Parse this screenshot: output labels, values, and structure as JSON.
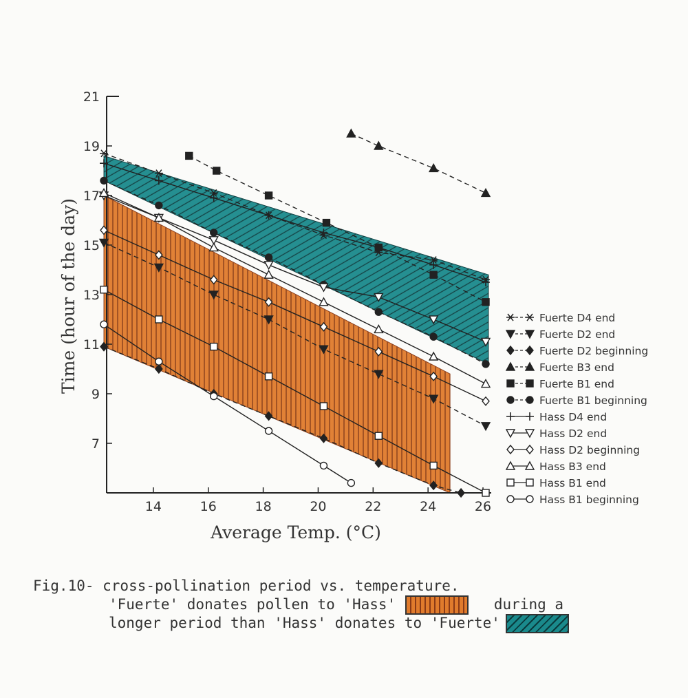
{
  "chart_data": {
    "type": "line",
    "xlabel": "Average Temp. (°C)",
    "ylabel": "Time (hour of the day)",
    "xlim": [
      12.3,
      26.3
    ],
    "ylim": [
      5,
      21
    ],
    "x_ticks": [
      "14",
      "16",
      "18",
      "20",
      "22",
      "24",
      "26"
    ],
    "y_ticks": [
      "7",
      "9",
      "11",
      "13",
      "15",
      "17",
      "19",
      "21"
    ],
    "legend_position": "right",
    "series": [
      {
        "name": "Fuerte D4 end",
        "marker": "star",
        "style": "dashed",
        "points": [
          [
            12.2,
            18.7
          ],
          [
            14.2,
            17.9
          ],
          [
            16.2,
            17.1
          ],
          [
            18.2,
            16.2
          ],
          [
            20.2,
            15.4
          ],
          [
            22.2,
            14.7
          ],
          [
            24.2,
            14.4
          ],
          [
            26.1,
            13.6
          ]
        ]
      },
      {
        "name": "Fuerte D2 end",
        "marker": "filled-triangle-down",
        "style": "dashed",
        "points": [
          [
            12.2,
            15.1
          ],
          [
            14.2,
            14.1
          ],
          [
            16.2,
            13.0
          ],
          [
            18.2,
            12.0
          ],
          [
            20.2,
            10.8
          ],
          [
            22.2,
            9.8
          ],
          [
            24.2,
            8.8
          ],
          [
            26.1,
            7.7
          ]
        ]
      },
      {
        "name": "Fuerte D2 beginning",
        "marker": "filled-diamond",
        "style": "dashed",
        "points": [
          [
            12.2,
            10.9
          ],
          [
            14.2,
            10.0
          ],
          [
            16.2,
            9.0
          ],
          [
            18.2,
            8.1
          ],
          [
            20.2,
            7.2
          ],
          [
            22.2,
            6.2
          ],
          [
            24.2,
            5.3
          ],
          [
            25.2,
            5.0
          ]
        ]
      },
      {
        "name": "Fuerte B3 end",
        "marker": "filled-triangle-up",
        "style": "dashed",
        "points": [
          [
            21.2,
            19.5
          ],
          [
            22.2,
            19.0
          ],
          [
            24.2,
            18.1
          ],
          [
            26.1,
            17.1
          ]
        ]
      },
      {
        "name": "Fuerte B1 end",
        "marker": "filled-square",
        "style": "dashed",
        "points": [
          [
            15.3,
            18.6
          ],
          [
            16.3,
            18.0
          ],
          [
            18.2,
            17.0
          ],
          [
            20.3,
            15.9
          ],
          [
            22.2,
            14.9
          ],
          [
            24.2,
            13.8
          ],
          [
            26.1,
            12.7
          ]
        ]
      },
      {
        "name": "Fuerte B1 beginning",
        "marker": "filled-circle",
        "style": "dashed",
        "points": [
          [
            12.2,
            17.6
          ],
          [
            14.2,
            16.6
          ],
          [
            16.2,
            15.5
          ],
          [
            18.2,
            14.5
          ],
          [
            20.2,
            13.4
          ],
          [
            22.2,
            12.3
          ],
          [
            24.2,
            11.3
          ],
          [
            26.1,
            10.2
          ]
        ]
      },
      {
        "name": "Hass D4 end",
        "marker": "plus",
        "style": "solid",
        "points": [
          [
            12.2,
            18.3
          ],
          [
            14.2,
            17.6
          ],
          [
            16.2,
            16.9
          ],
          [
            18.2,
            16.2
          ],
          [
            20.2,
            15.5
          ],
          [
            22.2,
            14.9
          ],
          [
            24.2,
            14.2
          ],
          [
            26.1,
            13.5
          ]
        ]
      },
      {
        "name": "Hass D2 end",
        "marker": "open-triangle-down",
        "style": "solid",
        "points": [
          [
            12.2,
            17.0
          ],
          [
            14.2,
            16.1
          ],
          [
            16.2,
            15.2
          ],
          [
            18.2,
            14.2
          ],
          [
            20.2,
            13.3
          ],
          [
            22.2,
            12.9
          ],
          [
            24.2,
            12.0
          ],
          [
            26.1,
            11.1
          ]
        ]
      },
      {
        "name": "Hass D2 beginning",
        "marker": "open-diamond",
        "style": "solid",
        "points": [
          [
            12.2,
            15.6
          ],
          [
            14.2,
            14.6
          ],
          [
            16.2,
            13.6
          ],
          [
            18.2,
            12.7
          ],
          [
            20.2,
            11.7
          ],
          [
            22.2,
            10.7
          ],
          [
            24.2,
            9.7
          ],
          [
            26.1,
            8.7
          ]
        ]
      },
      {
        "name": "Hass B3 end",
        "marker": "open-triangle-up",
        "style": "solid",
        "points": [
          [
            12.2,
            17.1
          ],
          [
            14.2,
            16.1
          ],
          [
            16.2,
            14.9
          ],
          [
            18.2,
            13.8
          ],
          [
            20.2,
            12.7
          ],
          [
            22.2,
            11.6
          ],
          [
            24.2,
            10.5
          ],
          [
            26.1,
            9.4
          ]
        ]
      },
      {
        "name": "Hass B1 end",
        "marker": "open-square",
        "style": "solid",
        "points": [
          [
            12.2,
            13.2
          ],
          [
            14.2,
            12.0
          ],
          [
            16.2,
            10.9
          ],
          [
            18.2,
            9.7
          ],
          [
            20.2,
            8.5
          ],
          [
            22.2,
            7.3
          ],
          [
            24.2,
            6.1
          ],
          [
            26.1,
            5.0
          ]
        ]
      },
      {
        "name": "Hass B1 beginning",
        "marker": "open-circle",
        "style": "solid",
        "points": [
          [
            12.2,
            11.8
          ],
          [
            14.2,
            10.3
          ],
          [
            16.2,
            8.9
          ],
          [
            18.2,
            7.5
          ],
          [
            20.2,
            6.1
          ],
          [
            21.2,
            5.4
          ]
        ]
      }
    ],
    "bands": [
      {
        "name": "Fuerte donates pollen to Hass",
        "color": "#e07b2c",
        "hatch": "vertical",
        "upper": [
          [
            12.2,
            17.0
          ],
          [
            24.8,
            9.8
          ]
        ],
        "lower": [
          [
            12.2,
            10.9
          ],
          [
            24.8,
            5.0
          ]
        ]
      },
      {
        "name": "Hass donates to Fuerte",
        "color": "#1a8a8c",
        "hatch": "diagonal",
        "upper": [
          [
            12.2,
            18.6
          ],
          [
            26.2,
            13.8
          ]
        ],
        "lower": [
          [
            12.2,
            17.6
          ],
          [
            26.2,
            10.2
          ]
        ]
      }
    ],
    "colors": {
      "orange": "#e07b2c",
      "teal": "#1a8a8c",
      "ink": "#222222"
    }
  },
  "caption": {
    "line1": "Fig.10- cross-pollination period vs. temperature.",
    "line2": "'Fuerte' donates pollen to 'Hass'",
    "line2_tail": " during a",
    "line3": "longer period than 'Hass' donates to 'Fuerte'"
  }
}
